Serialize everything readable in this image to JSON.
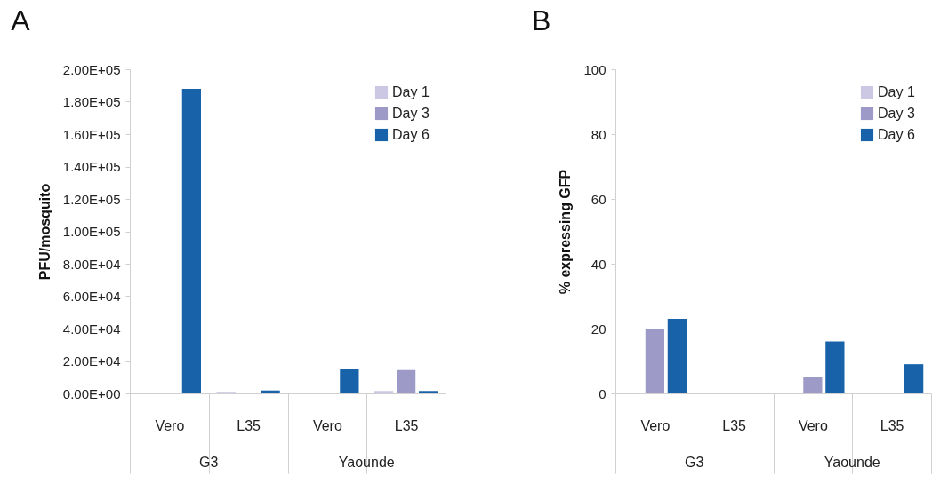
{
  "chart_data": [
    {
      "type": "bar",
      "title": "A",
      "ylabel": "PFU/mosquito",
      "categories": [
        "Vero",
        "L35",
        "Vero",
        "L35"
      ],
      "annotations": [
        "G3",
        "Yaounde"
      ],
      "legend": "top right",
      "series": [
        {
          "name": "Day 1",
          "color": "#ccc8e4",
          "values": [
            0,
            1000,
            0,
            1500
          ]
        },
        {
          "name": "Day 3",
          "color": "#9e9ac8",
          "values": [
            0,
            0,
            0,
            14400
          ]
        },
        {
          "name": "Day 6",
          "color": "#1762a8",
          "values": [
            188000,
            1800,
            15000,
            1500
          ]
        }
      ],
      "ylim": [
        0,
        200000
      ],
      "yticks": [
        {
          "value": 0,
          "label": "0.00E+00"
        },
        {
          "value": 20000,
          "label": "2.00E+04"
        },
        {
          "value": 40000,
          "label": "4.00E+04"
        },
        {
          "value": 60000,
          "label": "6.00E+04"
        },
        {
          "value": 80000,
          "label": "8.00E+04"
        },
        {
          "value": 100000,
          "label": "1.00E+05"
        },
        {
          "value": 120000,
          "label": "1.20E+05"
        },
        {
          "value": 140000,
          "label": "1.40E+05"
        },
        {
          "value": 160000,
          "label": "1.60E+05"
        },
        {
          "value": 180000,
          "label": "1.80E+05"
        },
        {
          "value": 200000,
          "label": "2.00E+05"
        }
      ]
    },
    {
      "type": "bar",
      "title": "B",
      "ylabel": "% expressing GFP",
      "categories": [
        "Vero",
        "L35",
        "Vero",
        "L35"
      ],
      "annotations": [
        "G3",
        "Yaounde"
      ],
      "legend": "top right",
      "series": [
        {
          "name": "Day 1",
          "color": "#ccc8e4",
          "values": [
            0,
            0,
            0,
            0
          ]
        },
        {
          "name": "Day 3",
          "color": "#9e9ac8",
          "values": [
            20,
            0,
            5,
            0
          ]
        },
        {
          "name": "Day 6",
          "color": "#1762a8",
          "values": [
            23,
            0,
            16,
            9
          ]
        }
      ],
      "ylim": [
        0,
        100
      ],
      "yticks": [
        0,
        20,
        40,
        60,
        80,
        100
      ]
    }
  ]
}
